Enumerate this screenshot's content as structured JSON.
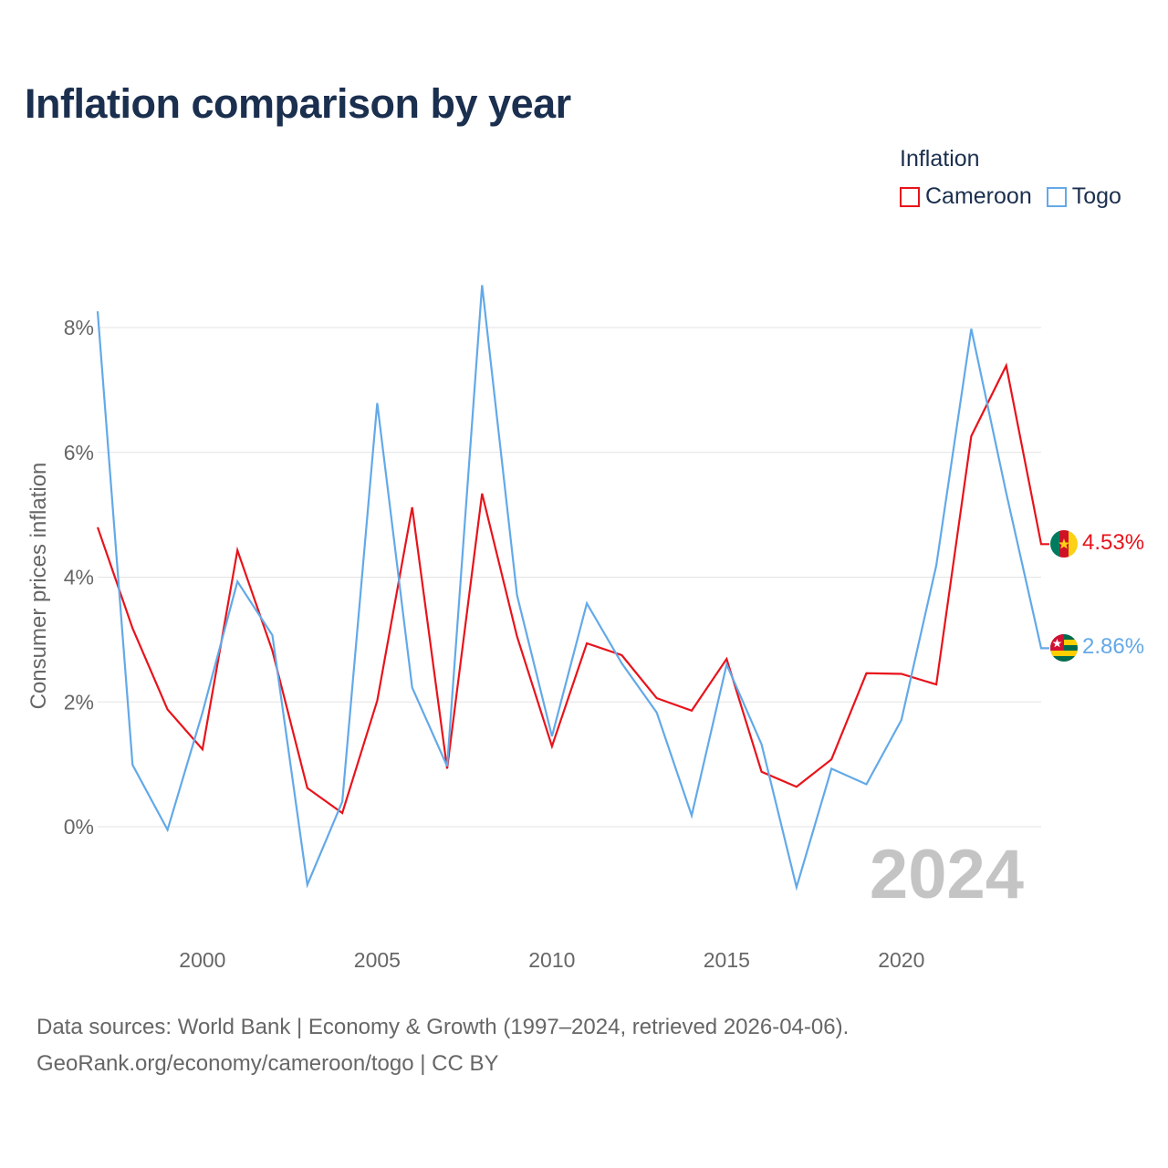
{
  "title": "Inflation comparison by year",
  "legend": {
    "title": "Inflation",
    "items": [
      {
        "name": "Cameroon",
        "color": "#e8131b"
      },
      {
        "name": "Togo",
        "color": "#63a9e8"
      }
    ]
  },
  "year_label": "2024",
  "end_labels": [
    {
      "series": "Cameroon",
      "text": "4.53%",
      "color": "#e8131b",
      "flag": "cameroon-flag-icon"
    },
    {
      "series": "Togo",
      "text": "2.86%",
      "color": "#63a9e8",
      "flag": "togo-flag-icon"
    }
  ],
  "footer": {
    "line1": "Data sources: World Bank | Economy & Growth (1997–2024, retrieved 2026-04-06).",
    "line2": "GeoRank.org/economy/cameroon/togo | CC BY"
  },
  "chart_data": {
    "type": "line",
    "title": "Inflation comparison by year",
    "ylabel": "Consumer prices inflation",
    "xlabel": "",
    "xlim": [
      1997,
      2024
    ],
    "ylim": [
      -1.5,
      9.5
    ],
    "y_ticks": [
      0,
      2,
      4,
      6,
      8
    ],
    "y_tick_labels": [
      "0%",
      "2%",
      "4%",
      "6%",
      "8%"
    ],
    "x_ticks": [
      2000,
      2005,
      2010,
      2015,
      2020
    ],
    "x_tick_labels": [
      "2000",
      "2005",
      "2010",
      "2015",
      "2020"
    ],
    "grid": true,
    "x": [
      1997,
      1998,
      1999,
      2000,
      2001,
      2002,
      2003,
      2004,
      2005,
      2006,
      2007,
      2008,
      2009,
      2010,
      2011,
      2012,
      2013,
      2014,
      2015,
      2016,
      2017,
      2018,
      2019,
      2020,
      2021,
      2022,
      2023,
      2024
    ],
    "series": [
      {
        "name": "Cameroon",
        "color": "#e8131b",
        "values": [
          4.8,
          3.18,
          1.88,
          1.24,
          4.43,
          2.82,
          0.62,
          0.22,
          2.02,
          5.12,
          0.93,
          5.34,
          3.05,
          1.29,
          2.94,
          2.75,
          2.06,
          1.86,
          2.69,
          0.88,
          0.64,
          1.08,
          2.46,
          2.45,
          2.28,
          6.26,
          7.39,
          4.53
        ]
      },
      {
        "name": "Togo",
        "color": "#63a9e8",
        "values": [
          8.26,
          0.99,
          -0.05,
          1.83,
          3.93,
          3.07,
          -0.93,
          0.4,
          6.79,
          2.23,
          0.97,
          8.68,
          3.71,
          1.45,
          3.58,
          2.62,
          1.83,
          0.18,
          2.6,
          1.32,
          -0.97,
          0.93,
          0.68,
          1.71,
          4.19,
          7.98,
          5.35,
          2.86
        ]
      }
    ]
  }
}
